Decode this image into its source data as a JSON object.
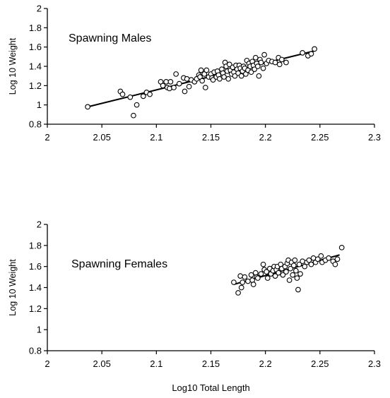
{
  "chart_data": [
    {
      "type": "scatter",
      "annotation": "Spawning Males",
      "xlabel": "",
      "ylabel": "Log 10 Weight",
      "xlim": [
        2,
        2.3
      ],
      "ylim": [
        0.8,
        2
      ],
      "xticks": [
        "2",
        "2.05",
        "2.1",
        "2.15",
        "2.2",
        "2.25",
        "2.3"
      ],
      "yticks": [
        "0.8",
        "1",
        "1.2",
        "1.4",
        "1.6",
        "1.8",
        "2"
      ],
      "trendline": {
        "x": [
          2.037,
          2.245
        ],
        "y": [
          0.98,
          1.56
        ]
      },
      "points": [
        [
          2.037,
          0.98
        ],
        [
          2.067,
          1.14
        ],
        [
          2.069,
          1.11
        ],
        [
          2.076,
          1.08
        ],
        [
          2.079,
          0.89
        ],
        [
          2.082,
          1.0
        ],
        [
          2.088,
          1.09
        ],
        [
          2.091,
          1.13
        ],
        [
          2.094,
          1.11
        ],
        [
          2.104,
          1.24
        ],
        [
          2.106,
          1.2
        ],
        [
          2.109,
          1.24
        ],
        [
          2.11,
          1.18
        ],
        [
          2.112,
          1.17
        ],
        [
          2.113,
          1.24
        ],
        [
          2.116,
          1.18
        ],
        [
          2.118,
          1.32
        ],
        [
          2.121,
          1.22
        ],
        [
          2.125,
          1.28
        ],
        [
          2.126,
          1.14
        ],
        [
          2.128,
          1.27
        ],
        [
          2.13,
          1.19
        ],
        [
          2.132,
          1.26
        ],
        [
          2.135,
          1.24
        ],
        [
          2.137,
          1.27
        ],
        [
          2.139,
          1.31
        ],
        [
          2.14,
          1.29
        ],
        [
          2.141,
          1.36
        ],
        [
          2.142,
          1.25
        ],
        [
          2.144,
          1.32
        ],
        [
          2.145,
          1.18
        ],
        [
          2.146,
          1.36
        ],
        [
          2.148,
          1.29
        ],
        [
          2.15,
          1.32
        ],
        [
          2.151,
          1.28
        ],
        [
          2.152,
          1.26
        ],
        [
          2.153,
          1.34
        ],
        [
          2.155,
          1.29
        ],
        [
          2.156,
          1.35
        ],
        [
          2.157,
          1.31
        ],
        [
          2.158,
          1.27
        ],
        [
          2.16,
          1.37
        ],
        [
          2.161,
          1.33
        ],
        [
          2.162,
          1.29
        ],
        [
          2.163,
          1.44
        ],
        [
          2.164,
          1.4
        ],
        [
          2.165,
          1.35
        ],
        [
          2.166,
          1.27
        ],
        [
          2.167,
          1.42
        ],
        [
          2.168,
          1.36
        ],
        [
          2.169,
          1.32
        ],
        [
          2.17,
          1.39
        ],
        [
          2.171,
          1.34
        ],
        [
          2.172,
          1.3
        ],
        [
          2.173,
          1.41
        ],
        [
          2.174,
          1.37
        ],
        [
          2.175,
          1.33
        ],
        [
          2.176,
          1.41
        ],
        [
          2.177,
          1.38
        ],
        [
          2.178,
          1.3
        ],
        [
          2.179,
          1.35
        ],
        [
          2.18,
          1.4
        ],
        [
          2.181,
          1.38
        ],
        [
          2.182,
          1.32
        ],
        [
          2.183,
          1.46
        ],
        [
          2.184,
          1.36
        ],
        [
          2.185,
          1.43
        ],
        [
          2.186,
          1.4
        ],
        [
          2.187,
          1.34
        ],
        [
          2.188,
          1.45
        ],
        [
          2.189,
          1.41
        ],
        [
          2.19,
          1.37
        ],
        [
          2.191,
          1.49
        ],
        [
          2.192,
          1.43
        ],
        [
          2.193,
          1.4
        ],
        [
          2.194,
          1.3
        ],
        [
          2.195,
          1.47
        ],
        [
          2.196,
          1.44
        ],
        [
          2.198,
          1.38
        ],
        [
          2.199,
          1.52
        ],
        [
          2.201,
          1.43
        ],
        [
          2.203,
          1.46
        ],
        [
          2.206,
          1.45
        ],
        [
          2.209,
          1.44
        ],
        [
          2.212,
          1.49
        ],
        [
          2.213,
          1.42
        ],
        [
          2.215,
          1.47
        ],
        [
          2.219,
          1.44
        ],
        [
          2.234,
          1.54
        ],
        [
          2.239,
          1.51
        ],
        [
          2.242,
          1.53
        ],
        [
          2.245,
          1.58
        ]
      ]
    },
    {
      "type": "scatter",
      "annotation": "Spawning Females",
      "xlabel": "Log10 Total Length",
      "ylabel": "Log 10 Weight",
      "xlim": [
        2,
        2.3
      ],
      "ylim": [
        0.8,
        2
      ],
      "xticks": [
        "2",
        "2.05",
        "2.1",
        "2.15",
        "2.2",
        "2.25",
        "2.3"
      ],
      "yticks": [
        "0.8",
        "1",
        "1.2",
        "1.4",
        "1.6",
        "1.8",
        "2"
      ],
      "trendline": {
        "x": [
          2.171,
          2.268
        ],
        "y": [
          1.43,
          1.71
        ]
      },
      "points": [
        [
          2.171,
          1.45
        ],
        [
          2.175,
          1.35
        ],
        [
          2.177,
          1.51
        ],
        [
          2.178,
          1.4
        ],
        [
          2.179,
          1.45
        ],
        [
          2.181,
          1.5
        ],
        [
          2.184,
          1.46
        ],
        [
          2.187,
          1.52
        ],
        [
          2.188,
          1.47
        ],
        [
          2.189,
          1.43
        ],
        [
          2.191,
          1.54
        ],
        [
          2.192,
          1.5
        ],
        [
          2.193,
          1.49
        ],
        [
          2.196,
          1.53
        ],
        [
          2.198,
          1.62
        ],
        [
          2.199,
          1.57
        ],
        [
          2.201,
          1.55
        ],
        [
          2.202,
          1.49
        ],
        [
          2.204,
          1.58
        ],
        [
          2.205,
          1.53
        ],
        [
          2.207,
          1.56
        ],
        [
          2.208,
          1.6
        ],
        [
          2.209,
          1.51
        ],
        [
          2.21,
          1.57
        ],
        [
          2.211,
          1.6
        ],
        [
          2.212,
          1.54
        ],
        [
          2.214,
          1.62
        ],
        [
          2.215,
          1.58
        ],
        [
          2.216,
          1.52
        ],
        [
          2.218,
          1.6
        ],
        [
          2.219,
          1.55
        ],
        [
          2.22,
          1.63
        ],
        [
          2.221,
          1.66
        ],
        [
          2.222,
          1.47
        ],
        [
          2.223,
          1.58
        ],
        [
          2.224,
          1.64
        ],
        [
          2.225,
          1.52
        ],
        [
          2.226,
          1.61
        ],
        [
          2.227,
          1.66
        ],
        [
          2.228,
          1.56
        ],
        [
          2.229,
          1.49
        ],
        [
          2.23,
          1.38
        ],
        [
          2.231,
          1.62
        ],
        [
          2.232,
          1.53
        ],
        [
          2.234,
          1.65
        ],
        [
          2.236,
          1.6
        ],
        [
          2.238,
          1.64
        ],
        [
          2.24,
          1.66
        ],
        [
          2.242,
          1.62
        ],
        [
          2.244,
          1.68
        ],
        [
          2.246,
          1.64
        ],
        [
          2.248,
          1.67
        ],
        [
          2.251,
          1.7
        ],
        [
          2.252,
          1.64
        ],
        [
          2.255,
          1.66
        ],
        [
          2.258,
          1.68
        ],
        [
          2.262,
          1.65
        ],
        [
          2.264,
          1.62
        ],
        [
          2.266,
          1.67
        ],
        [
          2.27,
          1.78
        ]
      ]
    }
  ]
}
